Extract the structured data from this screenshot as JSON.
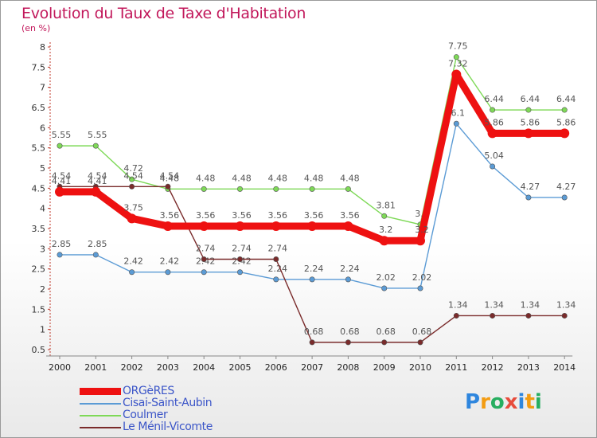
{
  "title": "Evolution du Taux de Taxe d'Habitation",
  "unit": "(en %)",
  "brand": {
    "letters": [
      "P",
      "r",
      "o",
      "x",
      "i",
      "t",
      "i"
    ],
    "colors": [
      "#2e86de",
      "#f39c12",
      "#27ae60",
      "#e74c3c",
      "#2e86de",
      "#f39c12",
      "#27ae60"
    ]
  },
  "chart_data": {
    "type": "line",
    "title": "Evolution du Taux de Taxe d'Habitation",
    "ylabel": "(en %)",
    "xlabel": "",
    "ylim": [
      0.5,
      8
    ],
    "y_ticks": [
      0.5,
      1,
      1.5,
      2,
      2.5,
      3,
      3.5,
      4,
      4.5,
      5,
      5.5,
      6,
      6.5,
      7,
      7.5,
      8
    ],
    "y_tick_labels": [
      "0.5",
      "1",
      "1.5",
      "2",
      "2.5",
      "3",
      "3.5",
      "4",
      "4.5",
      "5",
      "5.5",
      "6",
      "6.5",
      "7",
      "7.5",
      "8"
    ],
    "categories": [
      "2000",
      "2001",
      "2002",
      "2003",
      "2004",
      "2005",
      "2006",
      "2007",
      "2008",
      "2009",
      "2010",
      "2011",
      "2012",
      "2013",
      "2014"
    ],
    "legend_position": "bottom-left",
    "grid": false,
    "series": [
      {
        "name": "Cisai-Saint-Aubin",
        "color": "#5b9bd5",
        "values": [
          2.85,
          2.85,
          2.42,
          2.42,
          2.42,
          2.42,
          2.24,
          2.24,
          2.24,
          2.02,
          2.02,
          6.1,
          5.04,
          4.27,
          4.27
        ],
        "labels": [
          "2.85",
          "2.85",
          "2.42",
          "2.42",
          "2.42",
          "2.42",
          "2.24",
          "2.24",
          "2.24",
          "2.02",
          "2.02",
          "6.1",
          "5.04",
          "4.27",
          "4.27"
        ]
      },
      {
        "name": "Coulmer",
        "color": "#7ed957",
        "values": [
          5.55,
          5.55,
          4.72,
          4.48,
          4.48,
          4.48,
          4.48,
          4.48,
          4.48,
          3.81,
          3.6,
          7.75,
          6.44,
          6.44,
          6.44
        ],
        "labels": [
          "5.55",
          "5.55",
          "4.72",
          "4.48",
          "4.48",
          "4.48",
          "4.48",
          "4.48",
          "4.48",
          "3.81",
          "3.6",
          "7.75",
          "6.44",
          "6.44",
          "6.44"
        ]
      },
      {
        "name": "Le Ménil-Vicomte",
        "color": "#7a2b2b",
        "values": [
          4.54,
          4.54,
          4.54,
          4.54,
          2.74,
          2.74,
          2.74,
          0.68,
          0.68,
          0.68,
          0.68,
          1.34,
          1.34,
          1.34,
          1.34
        ],
        "labels": [
          "4.54",
          "4.54",
          "4.54",
          "4.54",
          "2.74",
          "2.74",
          "2.74",
          "0.68",
          "0.68",
          "0.68",
          "0.68",
          "1.34",
          "1.34",
          "1.34",
          "1.34"
        ]
      },
      {
        "name": "ORGèRES",
        "color": "#ee1111",
        "values": [
          4.41,
          4.41,
          3.75,
          3.56,
          3.56,
          3.56,
          3.56,
          3.56,
          3.56,
          3.2,
          3.2,
          7.32,
          5.86,
          5.86,
          5.86
        ],
        "labels": [
          "4.41",
          "4.41",
          "3.75",
          "3.56",
          "3.56",
          "3.56",
          "3.56",
          "3.56",
          "3.56",
          "3.2",
          "3.2",
          "7.32",
          "5.86",
          "5.86",
          "5.86"
        ]
      }
    ],
    "legend_order": [
      "ORGèRES",
      "Cisai-Saint-Aubin",
      "Coulmer",
      "Le Ménil-Vicomte"
    ]
  }
}
